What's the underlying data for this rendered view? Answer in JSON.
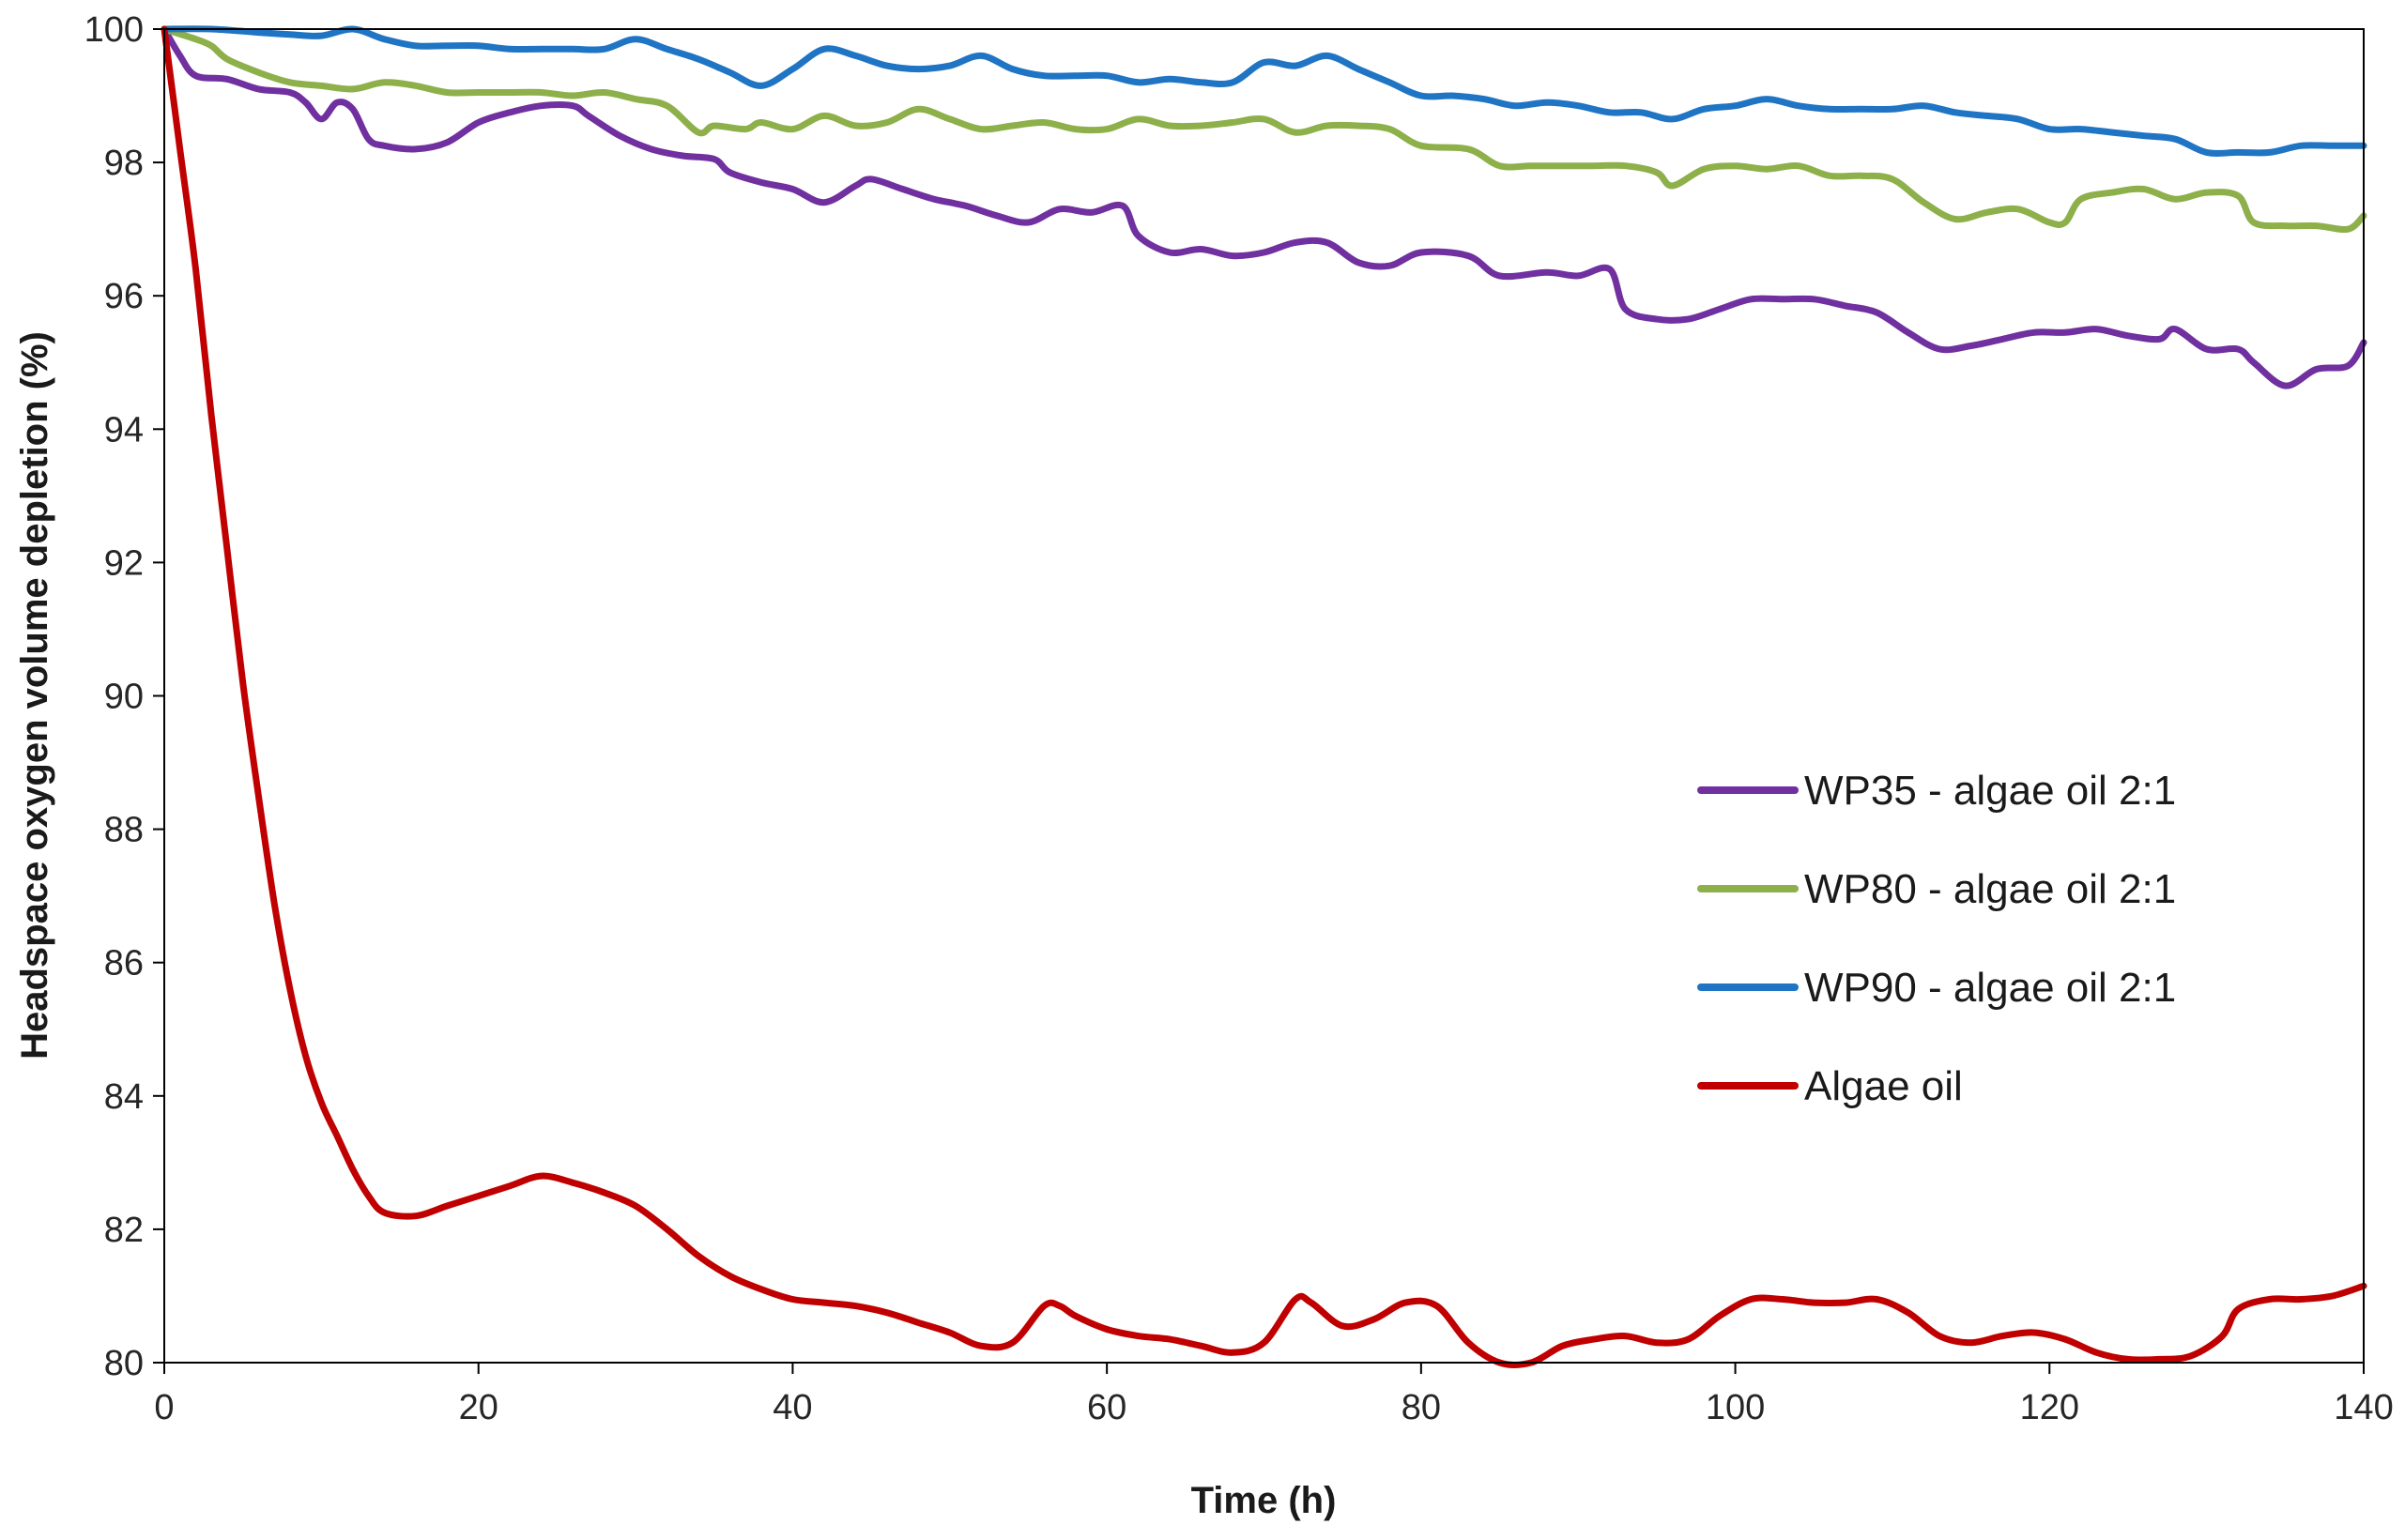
{
  "chart_data": {
    "type": "line",
    "title": "",
    "xlabel": "Time (h)",
    "ylabel": "Headspace oxygen volume depletion (%)",
    "xlim": [
      0,
      140
    ],
    "ylim": [
      80,
      100
    ],
    "xticks": [
      0,
      20,
      40,
      60,
      80,
      100,
      120,
      140
    ],
    "yticks": [
      80,
      82,
      84,
      86,
      88,
      90,
      92,
      94,
      96,
      98,
      100
    ],
    "grid": false,
    "legend_position": "center-right",
    "series": [
      {
        "name": "WP35 - algae oil 2:1",
        "color": "#7030A0",
        "points": [
          [
            0,
            100
          ],
          [
            1,
            99.6
          ],
          [
            2,
            99.3
          ],
          [
            4,
            99.25
          ],
          [
            6,
            99.1
          ],
          [
            8,
            99.05
          ],
          [
            9,
            98.9
          ],
          [
            10,
            98.65
          ],
          [
            11,
            98.9
          ],
          [
            12,
            98.8
          ],
          [
            13,
            98.35
          ],
          [
            14,
            98.25
          ],
          [
            16,
            98.2
          ],
          [
            18,
            98.3
          ],
          [
            20,
            98.6
          ],
          [
            22,
            98.75
          ],
          [
            24,
            98.85
          ],
          [
            26,
            98.85
          ],
          [
            27,
            98.7
          ],
          [
            29,
            98.4
          ],
          [
            31,
            98.2
          ],
          [
            33,
            98.1
          ],
          [
            35,
            98.05
          ],
          [
            36,
            97.85
          ],
          [
            38,
            97.7
          ],
          [
            40,
            97.6
          ],
          [
            42,
            97.4
          ],
          [
            44,
            97.65
          ],
          [
            45,
            97.75
          ],
          [
            47,
            97.6
          ],
          [
            49,
            97.45
          ],
          [
            51,
            97.35
          ],
          [
            53,
            97.2
          ],
          [
            55,
            97.1
          ],
          [
            57,
            97.3
          ],
          [
            59,
            97.25
          ],
          [
            61,
            97.35
          ],
          [
            62,
            96.9
          ],
          [
            64,
            96.65
          ],
          [
            66,
            96.7
          ],
          [
            68,
            96.6
          ],
          [
            70,
            96.65
          ],
          [
            72,
            96.8
          ],
          [
            74,
            96.8
          ],
          [
            76,
            96.5
          ],
          [
            78,
            96.45
          ],
          [
            80,
            96.65
          ],
          [
            83,
            96.6
          ],
          [
            85,
            96.3
          ],
          [
            88,
            96.35
          ],
          [
            90,
            96.3
          ],
          [
            92,
            96.4
          ],
          [
            93,
            95.8
          ],
          [
            95,
            95.65
          ],
          [
            97,
            95.65
          ],
          [
            99,
            95.8
          ],
          [
            101,
            95.95
          ],
          [
            103,
            95.95
          ],
          [
            105,
            95.95
          ],
          [
            107,
            95.85
          ],
          [
            109,
            95.75
          ],
          [
            111,
            95.45
          ],
          [
            113,
            95.2
          ],
          [
            115,
            95.25
          ],
          [
            117,
            95.35
          ],
          [
            119,
            95.45
          ],
          [
            121,
            95.45
          ],
          [
            123,
            95.5
          ],
          [
            125,
            95.4
          ],
          [
            127,
            95.35
          ],
          [
            128,
            95.5
          ],
          [
            130,
            95.2
          ],
          [
            132,
            95.2
          ],
          [
            133,
            95.0
          ],
          [
            135,
            94.65
          ],
          [
            137,
            94.9
          ],
          [
            139,
            94.95
          ],
          [
            140,
            95.3
          ]
        ]
      },
      {
        "name": "WP80 - algae oil 2:1",
        "color": "#8DB04A",
        "points": [
          [
            0,
            100
          ],
          [
            2,
            99.85
          ],
          [
            3,
            99.75
          ],
          [
            4,
            99.55
          ],
          [
            6,
            99.35
          ],
          [
            8,
            99.2
          ],
          [
            10,
            99.15
          ],
          [
            12,
            99.1
          ],
          [
            14,
            99.2
          ],
          [
            16,
            99.15
          ],
          [
            18,
            99.05
          ],
          [
            20,
            99.05
          ],
          [
            22,
            99.05
          ],
          [
            24,
            99.05
          ],
          [
            26,
            99.0
          ],
          [
            28,
            99.05
          ],
          [
            30,
            98.95
          ],
          [
            32,
            98.85
          ],
          [
            34,
            98.45
          ],
          [
            35,
            98.55
          ],
          [
            37,
            98.5
          ],
          [
            38,
            98.6
          ],
          [
            40,
            98.5
          ],
          [
            42,
            98.7
          ],
          [
            44,
            98.55
          ],
          [
            46,
            98.6
          ],
          [
            48,
            98.8
          ],
          [
            50,
            98.65
          ],
          [
            52,
            98.5
          ],
          [
            54,
            98.55
          ],
          [
            56,
            98.6
          ],
          [
            58,
            98.5
          ],
          [
            60,
            98.5
          ],
          [
            62,
            98.65
          ],
          [
            64,
            98.55
          ],
          [
            66,
            98.55
          ],
          [
            68,
            98.6
          ],
          [
            70,
            98.65
          ],
          [
            72,
            98.45
          ],
          [
            74,
            98.55
          ],
          [
            76,
            98.55
          ],
          [
            78,
            98.5
          ],
          [
            80,
            98.25
          ],
          [
            83,
            98.2
          ],
          [
            85,
            97.95
          ],
          [
            87,
            97.95
          ],
          [
            89,
            97.95
          ],
          [
            91,
            97.95
          ],
          [
            93,
            97.95
          ],
          [
            95,
            97.85
          ],
          [
            96,
            97.65
          ],
          [
            98,
            97.9
          ],
          [
            100,
            97.95
          ],
          [
            102,
            97.9
          ],
          [
            104,
            97.95
          ],
          [
            106,
            97.8
          ],
          [
            108,
            97.8
          ],
          [
            110,
            97.75
          ],
          [
            112,
            97.4
          ],
          [
            114,
            97.15
          ],
          [
            116,
            97.25
          ],
          [
            118,
            97.3
          ],
          [
            120,
            97.1
          ],
          [
            121,
            97.1
          ],
          [
            122,
            97.45
          ],
          [
            124,
            97.55
          ],
          [
            126,
            97.6
          ],
          [
            128,
            97.45
          ],
          [
            130,
            97.55
          ],
          [
            132,
            97.5
          ],
          [
            133,
            97.1
          ],
          [
            135,
            97.05
          ],
          [
            137,
            97.05
          ],
          [
            139,
            97.0
          ],
          [
            140,
            97.2
          ]
        ]
      },
      {
        "name": "WP90 - algae oil 2:1",
        "color": "#1F74C4",
        "points": [
          [
            0,
            100
          ],
          [
            3,
            100
          ],
          [
            6,
            99.95
          ],
          [
            8,
            99.92
          ],
          [
            10,
            99.9
          ],
          [
            12,
            100
          ],
          [
            14,
            99.85
          ],
          [
            16,
            99.75
          ],
          [
            18,
            99.75
          ],
          [
            20,
            99.75
          ],
          [
            22,
            99.7
          ],
          [
            24,
            99.7
          ],
          [
            26,
            99.7
          ],
          [
            28,
            99.7
          ],
          [
            30,
            99.85
          ],
          [
            32,
            99.7
          ],
          [
            34,
            99.55
          ],
          [
            36,
            99.35
          ],
          [
            38,
            99.15
          ],
          [
            40,
            99.4
          ],
          [
            42,
            99.7
          ],
          [
            44,
            99.6
          ],
          [
            46,
            99.45
          ],
          [
            48,
            99.4
          ],
          [
            50,
            99.45
          ],
          [
            52,
            99.6
          ],
          [
            54,
            99.4
          ],
          [
            56,
            99.3
          ],
          [
            58,
            99.3
          ],
          [
            60,
            99.3
          ],
          [
            62,
            99.2
          ],
          [
            64,
            99.25
          ],
          [
            66,
            99.2
          ],
          [
            68,
            99.2
          ],
          [
            70,
            99.5
          ],
          [
            72,
            99.45
          ],
          [
            74,
            99.6
          ],
          [
            76,
            99.4
          ],
          [
            78,
            99.2
          ],
          [
            80,
            99.0
          ],
          [
            82,
            99.0
          ],
          [
            84,
            98.95
          ],
          [
            86,
            98.85
          ],
          [
            88,
            98.9
          ],
          [
            90,
            98.85
          ],
          [
            92,
            98.75
          ],
          [
            94,
            98.75
          ],
          [
            96,
            98.65
          ],
          [
            98,
            98.8
          ],
          [
            100,
            98.85
          ],
          [
            102,
            98.95
          ],
          [
            104,
            98.85
          ],
          [
            106,
            98.8
          ],
          [
            108,
            98.8
          ],
          [
            110,
            98.8
          ],
          [
            112,
            98.85
          ],
          [
            114,
            98.75
          ],
          [
            116,
            98.7
          ],
          [
            118,
            98.65
          ],
          [
            120,
            98.5
          ],
          [
            122,
            98.5
          ],
          [
            124,
            98.45
          ],
          [
            126,
            98.4
          ],
          [
            128,
            98.35
          ],
          [
            130,
            98.15
          ],
          [
            132,
            98.15
          ],
          [
            134,
            98.15
          ],
          [
            136,
            98.25
          ],
          [
            138,
            98.25
          ],
          [
            140,
            98.25
          ]
        ]
      },
      {
        "name": "Algae oil",
        "color": "#C00000",
        "points": [
          [
            0,
            100
          ],
          [
            1,
            98.2
          ],
          [
            2,
            96.4
          ],
          [
            3,
            94.2
          ],
          [
            4,
            92.2
          ],
          [
            5,
            90.2
          ],
          [
            6,
            88.5
          ],
          [
            7,
            86.9
          ],
          [
            8,
            85.6
          ],
          [
            9,
            84.6
          ],
          [
            10,
            83.9
          ],
          [
            11,
            83.4
          ],
          [
            12,
            82.9
          ],
          [
            13,
            82.5
          ],
          [
            14,
            82.25
          ],
          [
            16,
            82.2
          ],
          [
            18,
            82.35
          ],
          [
            20,
            82.5
          ],
          [
            22,
            82.65
          ],
          [
            24,
            82.8
          ],
          [
            26,
            82.7
          ],
          [
            28,
            82.55
          ],
          [
            30,
            82.35
          ],
          [
            32,
            82.0
          ],
          [
            34,
            81.6
          ],
          [
            36,
            81.3
          ],
          [
            38,
            81.1
          ],
          [
            40,
            80.95
          ],
          [
            42,
            80.9
          ],
          [
            44,
            80.85
          ],
          [
            46,
            80.75
          ],
          [
            48,
            80.6
          ],
          [
            50,
            80.45
          ],
          [
            52,
            80.25
          ],
          [
            54,
            80.3
          ],
          [
            56,
            80.85
          ],
          [
            57,
            80.85
          ],
          [
            58,
            80.7
          ],
          [
            60,
            80.5
          ],
          [
            62,
            80.4
          ],
          [
            64,
            80.35
          ],
          [
            66,
            80.25
          ],
          [
            68,
            80.15
          ],
          [
            70,
            80.3
          ],
          [
            72,
            80.95
          ],
          [
            73,
            80.9
          ],
          [
            75,
            80.55
          ],
          [
            77,
            80.65
          ],
          [
            79,
            80.9
          ],
          [
            81,
            80.85
          ],
          [
            83,
            80.3
          ],
          [
            85,
            80.0
          ],
          [
            87,
            80.0
          ],
          [
            89,
            80.25
          ],
          [
            91,
            80.35
          ],
          [
            93,
            80.4
          ],
          [
            95,
            80.3
          ],
          [
            97,
            80.35
          ],
          [
            99,
            80.7
          ],
          [
            101,
            80.95
          ],
          [
            103,
            80.95
          ],
          [
            105,
            80.9
          ],
          [
            107,
            80.9
          ],
          [
            109,
            80.95
          ],
          [
            111,
            80.75
          ],
          [
            113,
            80.4
          ],
          [
            115,
            80.3
          ],
          [
            117,
            80.4
          ],
          [
            119,
            80.45
          ],
          [
            121,
            80.35
          ],
          [
            123,
            80.15
          ],
          [
            125,
            80.05
          ],
          [
            127,
            80.05
          ],
          [
            129,
            80.1
          ],
          [
            131,
            80.4
          ],
          [
            132,
            80.8
          ],
          [
            134,
            80.95
          ],
          [
            136,
            80.95
          ],
          [
            138,
            81.0
          ],
          [
            140,
            81.15
          ]
        ]
      }
    ]
  }
}
